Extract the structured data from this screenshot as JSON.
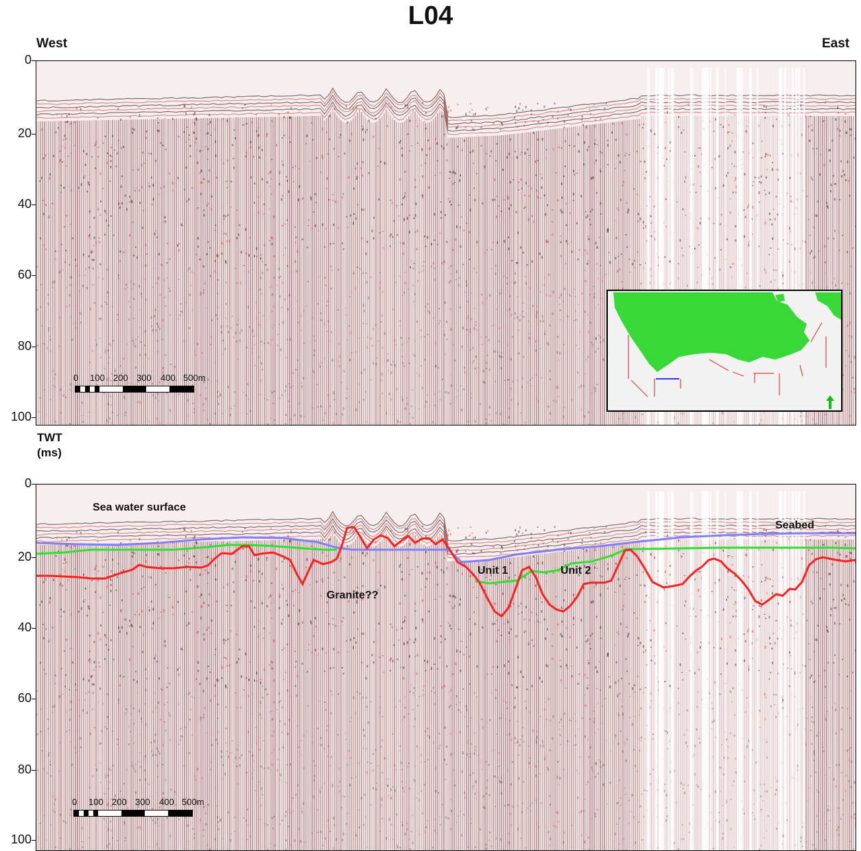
{
  "title": "L04",
  "directions": {
    "west": "West",
    "east": "East"
  },
  "axis": {
    "label_line1": "TWT",
    "label_line2": "(ms)",
    "ticks": [
      "0",
      "20",
      "40",
      "60",
      "80",
      "100"
    ]
  },
  "scale_bar": {
    "labels": [
      "0",
      "100",
      "200",
      "300",
      "400",
      "500m"
    ]
  },
  "annotations": {
    "sea_surface": "Sea water surface",
    "seabed": "Seabed",
    "granite": "Granite??",
    "unit1": "Unit 1",
    "unit2": "Unit 2"
  },
  "colors": {
    "seismic_trace": "#7a1f1f",
    "reflector_red": "#ff2020",
    "unit_green": "#2fe02f",
    "seabed_blue": "#8080ff",
    "inset_land": "#38d838"
  }
}
